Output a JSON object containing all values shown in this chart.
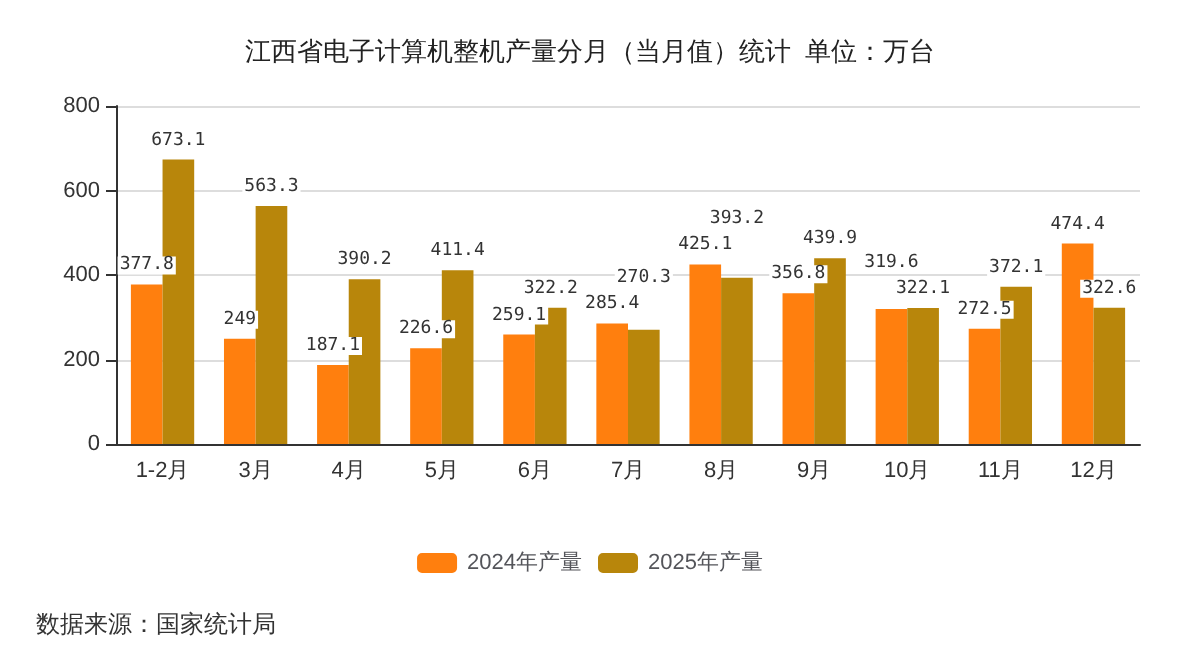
{
  "chart_data": {
    "type": "bar",
    "title": "江西省电子计算机整机产量分月（当月值）统计  单位：万台",
    "categories": [
      "1-2月",
      "3月",
      "4月",
      "5月",
      "6月",
      "7月",
      "8月",
      "9月",
      "10月",
      "11月",
      "12月"
    ],
    "series": [
      {
        "name": "2024年产量",
        "color": "#ff7f0e",
        "values": [
          377.8,
          249,
          187.1,
          226.6,
          259.1,
          285.4,
          425.1,
          356.8,
          319.6,
          272.5,
          474.4
        ]
      },
      {
        "name": "2025年产量",
        "color": "#b8860b",
        "values": [
          673.1,
          563.3,
          390.2,
          411.4,
          322.2,
          270.3,
          393.2,
          439.9,
          322.1,
          372.1,
          322.6
        ]
      }
    ],
    "ylim": [
      0,
      800
    ],
    "yticks": [
      0,
      200,
      400,
      600,
      800
    ],
    "grid": "y",
    "legend": "bottom",
    "data_labels": true,
    "annotations": [
      "数据来源：国家统计局"
    ]
  }
}
